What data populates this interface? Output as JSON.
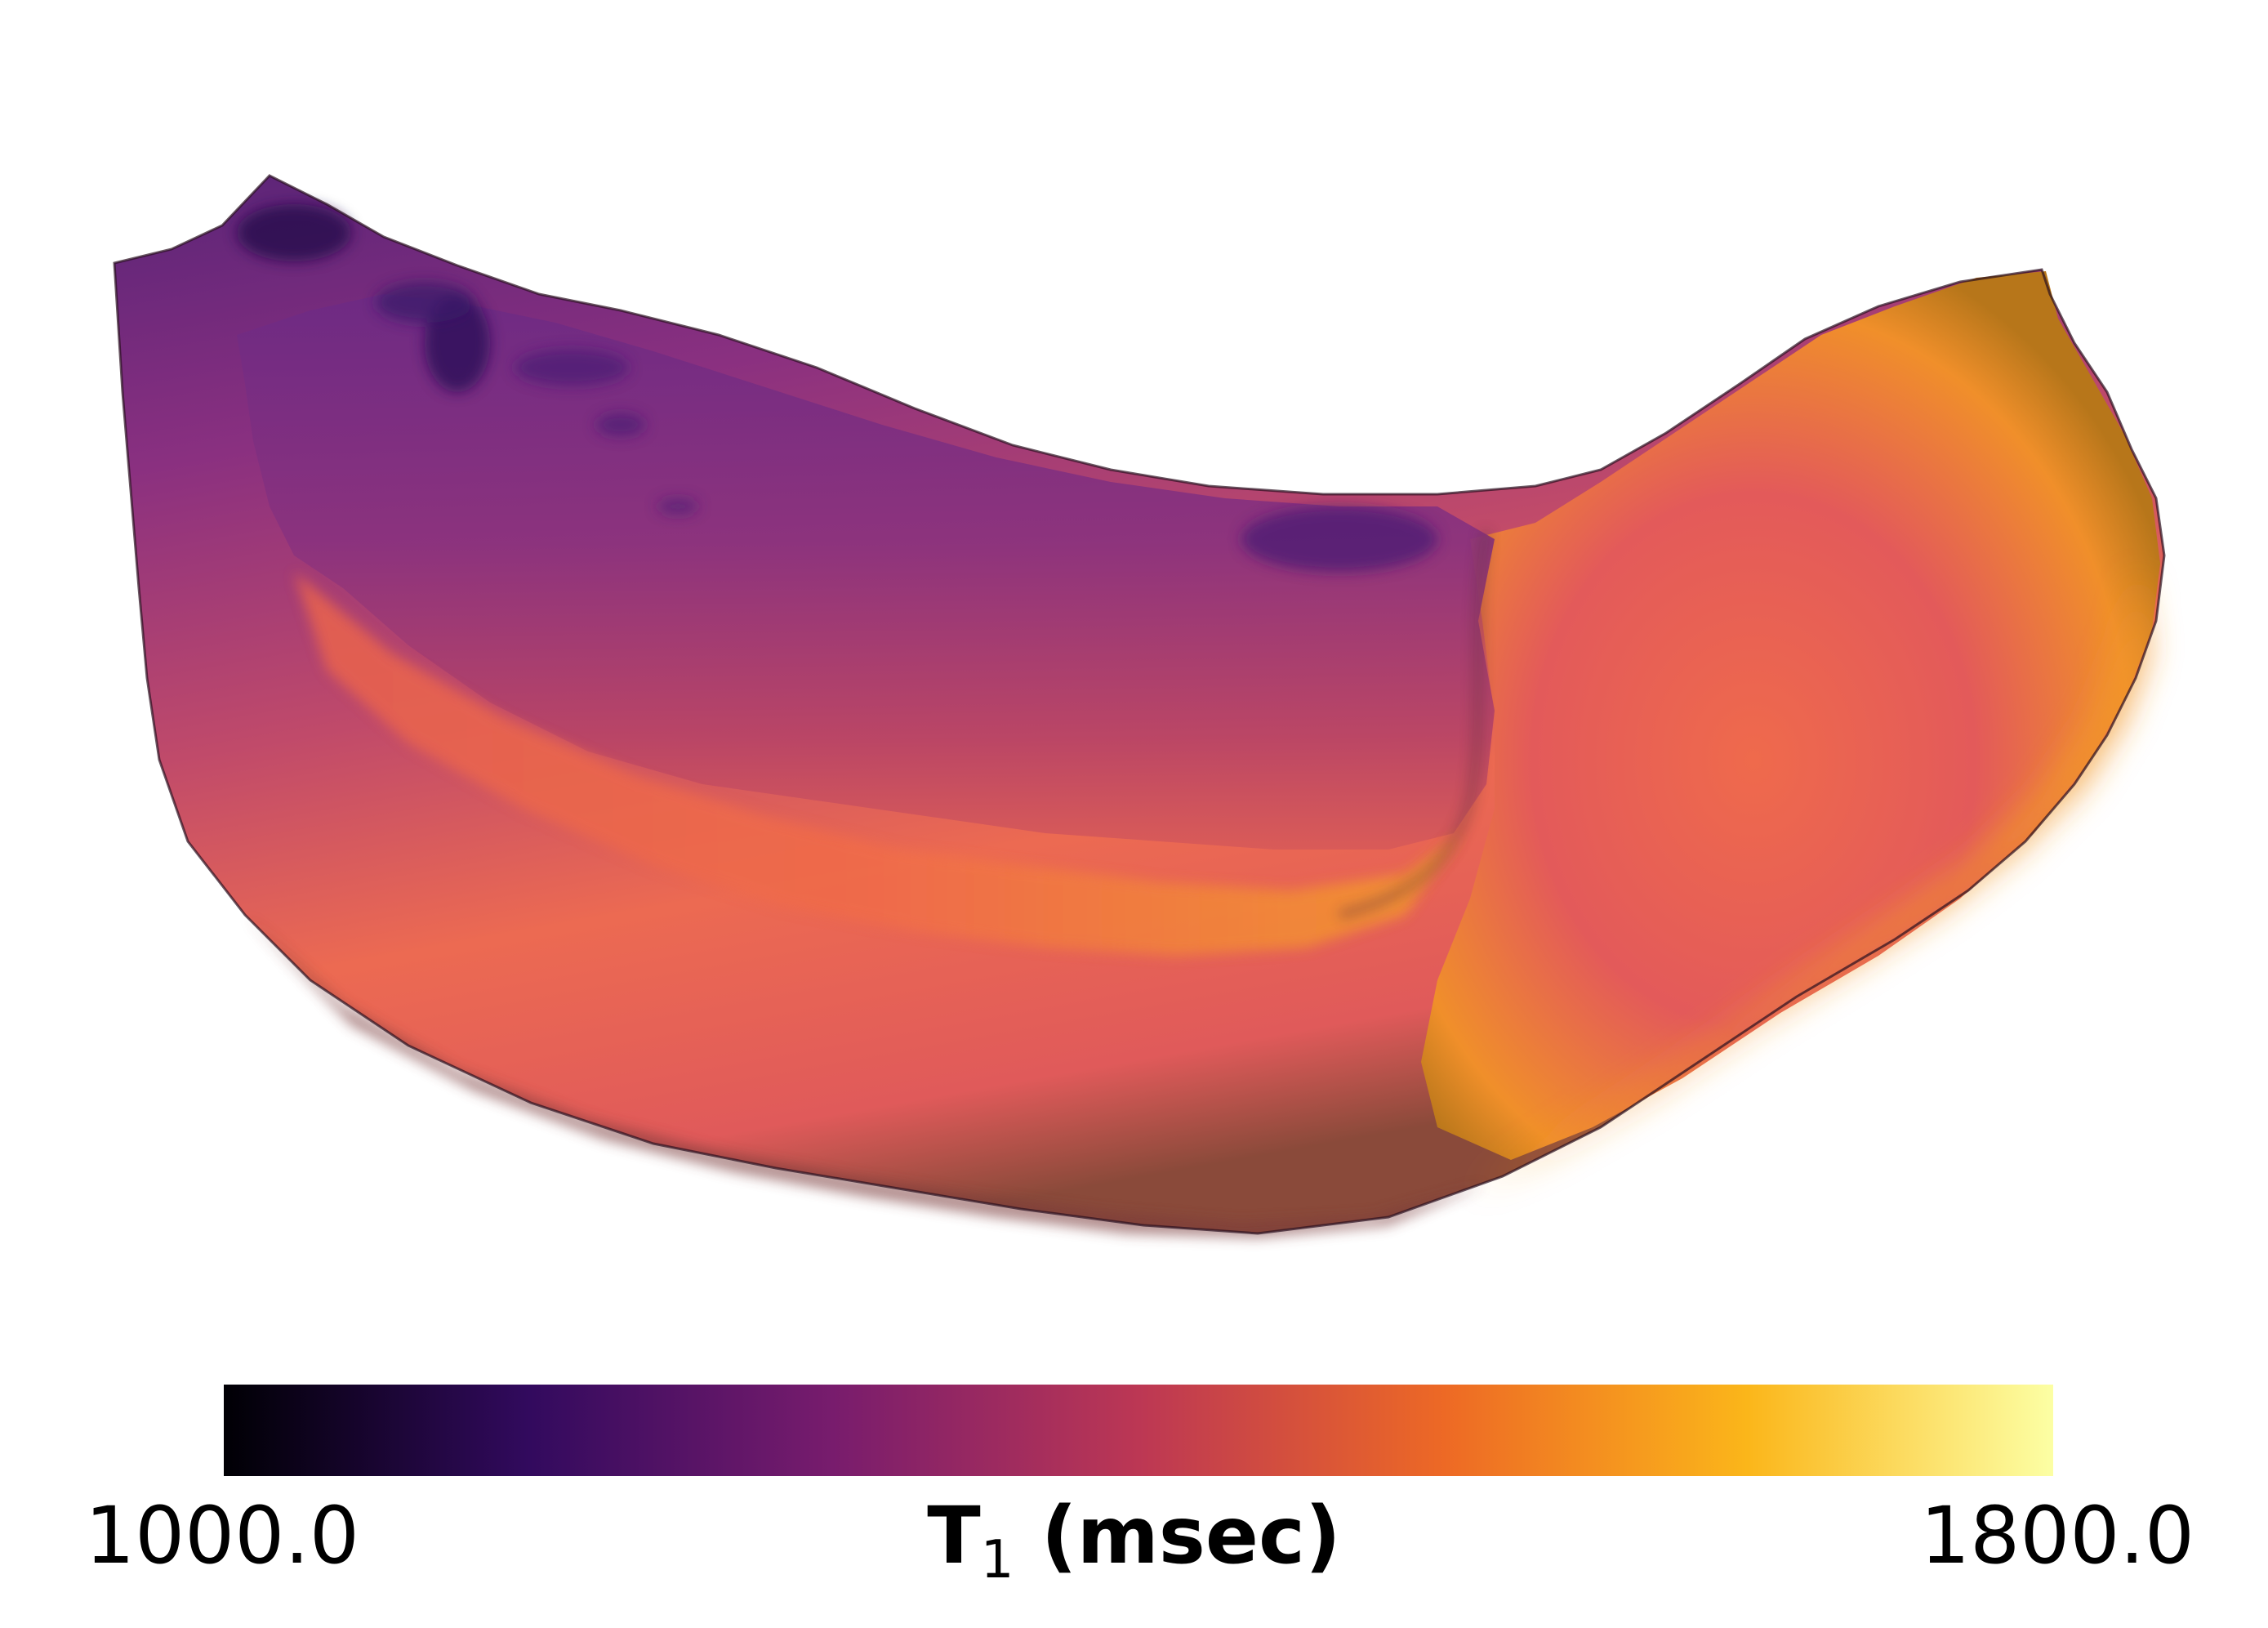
{
  "colorbar": {
    "min_label": "1000.0",
    "max_label": "1800.0",
    "title_main": "T",
    "title_sub": "1",
    "title_rest": " (msec)",
    "colormap": [
      "#000004",
      "#320a5e",
      "#781c6d",
      "#bc3754",
      "#ed6925",
      "#fbb61a",
      "#fcffa4"
    ]
  },
  "surface": {
    "colors": {
      "dark_purple": "#3a1a6a",
      "purple": "#7a2e86",
      "magenta": "#a8386f",
      "coral": "#f0674e",
      "orange": "#f08a2e",
      "gold": "#f5a623"
    }
  }
}
